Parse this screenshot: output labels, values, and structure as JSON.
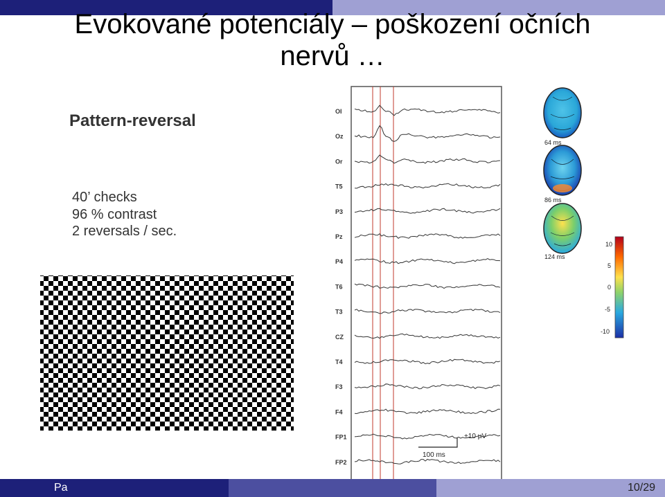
{
  "slide": {
    "title_line1": "Evokované potenciály – poškození očních",
    "title_line2": "nervů …",
    "footer_left": "Pa",
    "page_number": "10/29"
  },
  "pattern_panel": {
    "heading": "Pattern-reversal",
    "params": [
      "40’ checks",
      "96 % contrast",
      "2 reversals / sec."
    ]
  },
  "eeg_panel": {
    "channels": [
      "OI",
      "Oz",
      "Or",
      "T5",
      "P3",
      "Pz",
      "P4",
      "T6",
      "T3",
      "CZ",
      "T4",
      "F3",
      "F4",
      "FP1",
      "FP2"
    ],
    "scale_amplitude": "+10 µV",
    "scale_time": "100 ms"
  },
  "topomaps": {
    "labels": [
      "64 ms",
      "86 ms",
      "124 ms"
    ],
    "colorbar_ticks": [
      "10",
      "5",
      "0",
      "-5",
      "-10"
    ]
  },
  "colors": {
    "header_dark": "#1d2079",
    "header_light": "#9fa0d3",
    "marker_red": "#c0392b"
  }
}
